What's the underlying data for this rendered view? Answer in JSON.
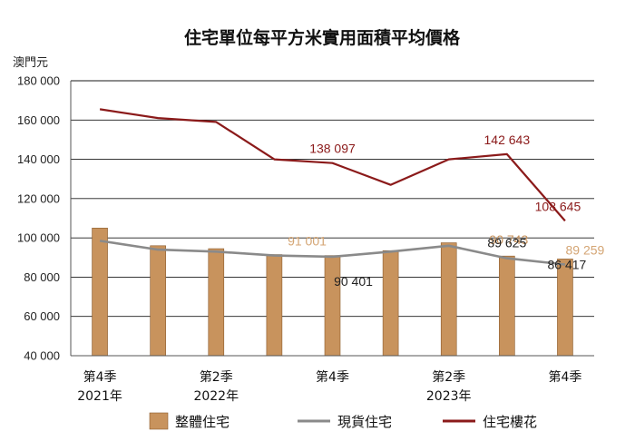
{
  "chart_data": {
    "type": "bar",
    "title": "住宅單位每平方米實用面積平均價格",
    "unit_label": "澳門元",
    "ylim": [
      40000,
      180000
    ],
    "yticks": [
      40000,
      60000,
      80000,
      100000,
      120000,
      140000,
      160000,
      180000
    ],
    "ytick_labels": [
      "40 000",
      "60 000",
      "80 000",
      "100 000",
      "120 000",
      "140 000",
      "160 000",
      "180 000"
    ],
    "grid": true,
    "legend_position": "bottom",
    "categories": [
      "2021Q4",
      "2022Q1",
      "2022Q2",
      "2022Q3",
      "2022Q4",
      "2023Q1",
      "2023Q2",
      "2023Q3",
      "2023Q4"
    ],
    "x_tick_labels": [
      {
        "index": 0,
        "lines": [
          "第4季",
          "2021年"
        ]
      },
      {
        "index": 2,
        "lines": [
          "第2季",
          "2022年"
        ]
      },
      {
        "index": 4,
        "lines": [
          "第4季",
          ""
        ]
      },
      {
        "index": 6,
        "lines": [
          "第2季",
          "2023年"
        ]
      },
      {
        "index": 8,
        "lines": [
          "第4季",
          ""
        ]
      }
    ],
    "series": [
      {
        "name": "整體住宅",
        "type": "bar",
        "color": "#c8935d",
        "values": [
          105000,
          96000,
          94500,
          91500,
          91001,
          93500,
          97500,
          90743,
          89259
        ]
      },
      {
        "name": "現貨住宅",
        "type": "line",
        "color": "#8a8a8a",
        "values": [
          98500,
          94000,
          93000,
          91000,
          90401,
          93000,
          96000,
          89625,
          86417
        ]
      },
      {
        "name": "住宅樓花",
        "type": "line",
        "color": "#8b1a1a",
        "values": [
          165500,
          161000,
          159000,
          140000,
          138097,
          127000,
          140000,
          142643,
          108645
        ]
      }
    ],
    "data_labels": [
      {
        "text": "138 097",
        "series": 2,
        "index": 4,
        "color": "#8b1a1a"
      },
      {
        "text": "142 643",
        "series": 2,
        "index": 7,
        "color": "#8b1a1a"
      },
      {
        "text": "108 645",
        "series": 2,
        "index": 8,
        "color": "#8b1a1a"
      },
      {
        "text": "91 001",
        "series": 0,
        "index": 4,
        "color": "#d4a574"
      },
      {
        "text": "90 401",
        "series": 1,
        "index": 4,
        "color": "#222222"
      },
      {
        "text": "90 743",
        "series": 0,
        "index": 7,
        "color": "#c8935d"
      },
      {
        "text": "89 625",
        "series": 1,
        "index": 7,
        "color": "#222222"
      },
      {
        "text": "89 259",
        "series": 0,
        "index": 8,
        "color": "#d4a574"
      },
      {
        "text": "86 417",
        "series": 1,
        "index": 8,
        "color": "#222222"
      }
    ]
  }
}
